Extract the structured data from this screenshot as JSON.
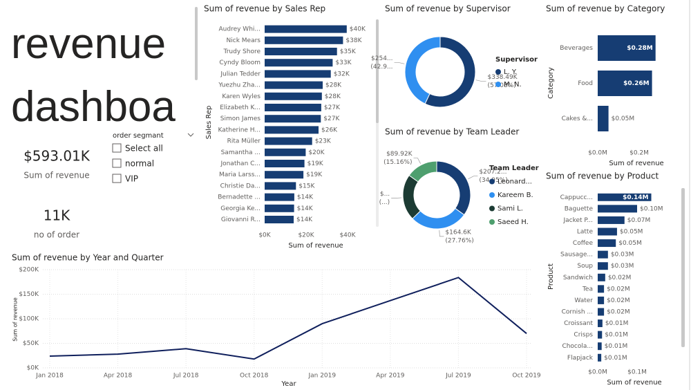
{
  "header": {
    "title": "revenue dashboa"
  },
  "cards": [
    {
      "value": "$593.01K",
      "label": "Sum of revenue"
    },
    {
      "value": "11K",
      "label": "no of order"
    }
  ],
  "slicer": {
    "title": "order segmant",
    "options": [
      "Select all",
      "normal",
      "VIP"
    ]
  },
  "chart_data": [
    {
      "type": "bar",
      "orientation": "horizontal",
      "title": "Sum of revenue by Sales Rep",
      "x_label": "Sum of revenue",
      "y_label": "Sales Rep",
      "color": "#163d73",
      "categories": [
        "Audrey Whi...",
        "Nick Mears",
        "Trudy Shore",
        "Cyndy Bloom",
        "Julian Tedder",
        "Yuezhu Zha...",
        "Karen Wyles",
        "Elizabeth K...",
        "Simon James",
        "Katherine H...",
        "Rita Müller",
        "Samantha ...",
        "Jonathan C...",
        "Maria Larss...",
        "Christie Da...",
        "Bernadette ...",
        "Georgia Ke...",
        "Giovanni R..."
      ],
      "values": [
        39.6,
        37.8,
        34.9,
        32.8,
        31.9,
        28.0,
        27.6,
        27.3,
        27.1,
        26.0,
        22.9,
        19.8,
        19.2,
        18.7,
        15.1,
        14.3,
        14.2,
        14.0
      ],
      "value_labels": [
        "$40K",
        "$38K",
        "$35K",
        "$33K",
        "$32K",
        "$28K",
        "$28K",
        "$27K",
        "$27K",
        "$26K",
        "$23K",
        "$20K",
        "$19K",
        "$19K",
        "$15K",
        "$14K",
        "$14K",
        "$14K"
      ],
      "xlim": [
        0,
        40
      ],
      "xticks": [
        {
          "value": 0,
          "label": "$0K"
        },
        {
          "value": 20,
          "label": "$20K"
        },
        {
          "value": 40,
          "label": "$40K"
        }
      ]
    },
    {
      "type": "bar",
      "orientation": "horizontal",
      "title": "Sum of revenue by Category",
      "x_label": "Sum of revenue",
      "y_label": "Category",
      "color": "#163d73",
      "categories": [
        "Beverages",
        "Food",
        "Cakes &..."
      ],
      "values": [
        0.279,
        0.262,
        0.052
      ],
      "value_labels": [
        "$0.28M",
        "$0.26M",
        "$0.05M"
      ],
      "xlim": [
        0,
        0.3
      ],
      "xticks": [
        {
          "value": 0,
          "label": "$0.0M"
        },
        {
          "value": 0.2,
          "label": "$0.2M"
        }
      ]
    },
    {
      "type": "bar",
      "orientation": "horizontal",
      "title": "Sum of revenue by Product",
      "x_label": "Sum of revenue",
      "y_label": "Product",
      "color": "#163d73",
      "categories": [
        "Cappucc...",
        "Baguette",
        "Jacket P...",
        "Latte",
        "Coffee",
        "Sausage...",
        "Soup",
        "Sandwich",
        "Tea",
        "Water",
        "Cornish ...",
        "Croissant",
        "Crisps",
        "Chocola...",
        "Flapjack"
      ],
      "values": [
        0.136,
        0.1,
        0.068,
        0.049,
        0.046,
        0.026,
        0.026,
        0.019,
        0.016,
        0.016,
        0.016,
        0.012,
        0.011,
        0.01,
        0.009
      ],
      "value_labels": [
        "$0.14M",
        "$0.10M",
        "$0.07M",
        "$0.05M",
        "$0.05M",
        "$0.03M",
        "$0.03M",
        "$0.02M",
        "$0.02M",
        "$0.02M",
        "$0.02M",
        "$0.01M",
        "$0.01M",
        "$0.01M",
        "$0.01M"
      ],
      "xlim": [
        0,
        0.15
      ],
      "xticks": [
        {
          "value": 0,
          "label": "$0.0M"
        },
        {
          "value": 0.1,
          "label": "$0.1M"
        }
      ]
    },
    {
      "type": "donut",
      "title": "Sum of revenue by Supervisor",
      "legend_title": "Supervisor",
      "categories": [
        "L. Y.",
        "M. N."
      ],
      "values": [
        338.49,
        254.52
      ],
      "colors": [
        "#163d73",
        "#2f8ff0"
      ],
      "value_labels": [
        "$338.49K",
        "$254..."
      ],
      "percent_labels": [
        "(57.08%)",
        "(42.9..."
      ]
    },
    {
      "type": "donut",
      "title": "Sum of revenue by Team Leader",
      "legend_title": "Team Leader",
      "categories": [
        "Leonard...",
        "Kareem B.",
        "Sami L.",
        "Saeed H."
      ],
      "values": [
        207.26,
        164.62,
        131.21,
        89.92
      ],
      "colors": [
        "#163d73",
        "#2f8ff0",
        "#1c3b33",
        "#4e9f6e"
      ],
      "value_labels": [
        "$207.2...",
        "$164.6K",
        "$...",
        "$89.92K"
      ],
      "percent_labels": [
        "(34.95%)",
        "(27.76%)",
        "(...)",
        "(15.16%)"
      ]
    },
    {
      "type": "line",
      "title": "Sum of revenue by Year and Quarter",
      "x_label": "Year",
      "y_label": "Sum of revenue",
      "color": "#0f1f5c",
      "grid": true,
      "categories": [
        "Jan 2018",
        "Apr 2018",
        "Jul 2018",
        "Oct 2018",
        "Jan 2019",
        "Apr 2019",
        "Jul 2019",
        "Oct 2019"
      ],
      "values": [
        24,
        28,
        39,
        18,
        90,
        137,
        184,
        70
      ],
      "ylim": [
        0,
        200
      ],
      "yticks": [
        {
          "value": 0,
          "label": "$0K"
        },
        {
          "value": 50,
          "label": "$50K"
        },
        {
          "value": 100,
          "label": "$100K"
        },
        {
          "value": 150,
          "label": "$150K"
        },
        {
          "value": 200,
          "label": "$200K"
        }
      ]
    }
  ]
}
